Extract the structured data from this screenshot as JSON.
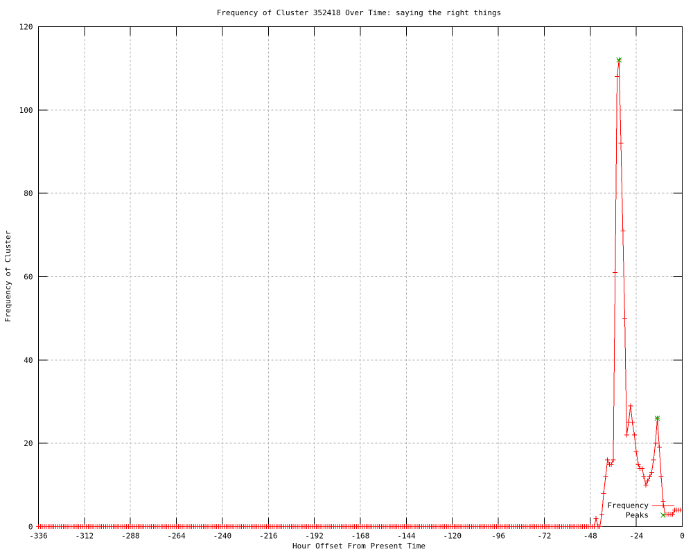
{
  "chart_data": {
    "type": "line",
    "title": "Frequency of Cluster 352418 Over Time: saying the right things",
    "xlabel": "Hour Offset From Present Time",
    "ylabel": "Frequency of Cluster",
    "xlim": [
      -336,
      0
    ],
    "ylim": [
      0,
      120
    ],
    "x_ticks": [
      -336,
      -312,
      -288,
      -264,
      -240,
      -216,
      -192,
      -168,
      -144,
      -120,
      -96,
      -72,
      -48,
      -24,
      0
    ],
    "y_ticks": [
      0,
      20,
      40,
      60,
      80,
      100,
      120
    ],
    "grid": true,
    "legend_position": "bottom-right",
    "series": [
      {
        "name": "Frequency",
        "color": "#ff0000",
        "marker": "plus",
        "style": "linespoints",
        "baseline_run": {
          "x_start": -336,
          "x_end": -46,
          "step": 1,
          "y": 0
        },
        "points": [
          [
            -45,
            2
          ],
          [
            -44,
            0
          ],
          [
            -43,
            0
          ],
          [
            -42,
            3
          ],
          [
            -41,
            8
          ],
          [
            -40,
            12
          ],
          [
            -39,
            16
          ],
          [
            -38,
            15
          ],
          [
            -37,
            15
          ],
          [
            -36,
            16
          ],
          [
            -35,
            61
          ],
          [
            -34,
            108
          ],
          [
            -33,
            112
          ],
          [
            -32,
            92
          ],
          [
            -31,
            71
          ],
          [
            -30,
            50
          ],
          [
            -29,
            22
          ],
          [
            -28,
            25
          ],
          [
            -27,
            29
          ],
          [
            -26,
            25
          ],
          [
            -25,
            22
          ],
          [
            -24,
            18
          ],
          [
            -23,
            15
          ],
          [
            -22,
            14
          ],
          [
            -21,
            14
          ],
          [
            -20,
            12
          ],
          [
            -19,
            10
          ],
          [
            -18,
            11
          ],
          [
            -17,
            12
          ],
          [
            -16,
            13
          ],
          [
            -15,
            16
          ],
          [
            -14,
            20
          ],
          [
            -13,
            26
          ],
          [
            -12,
            19
          ],
          [
            -11,
            12
          ],
          [
            -10,
            6
          ],
          [
            -9,
            3
          ],
          [
            -8,
            3
          ],
          [
            -7,
            3
          ],
          [
            -6,
            3
          ],
          [
            -5,
            3
          ],
          [
            -4,
            4
          ],
          [
            -3,
            4
          ],
          [
            -2,
            4
          ],
          [
            -1,
            4
          ]
        ]
      },
      {
        "name": "Peaks",
        "color": "#00c000",
        "marker": "cross",
        "style": "points",
        "points": [
          [
            -33,
            112
          ],
          [
            -13,
            26
          ]
        ]
      }
    ]
  }
}
